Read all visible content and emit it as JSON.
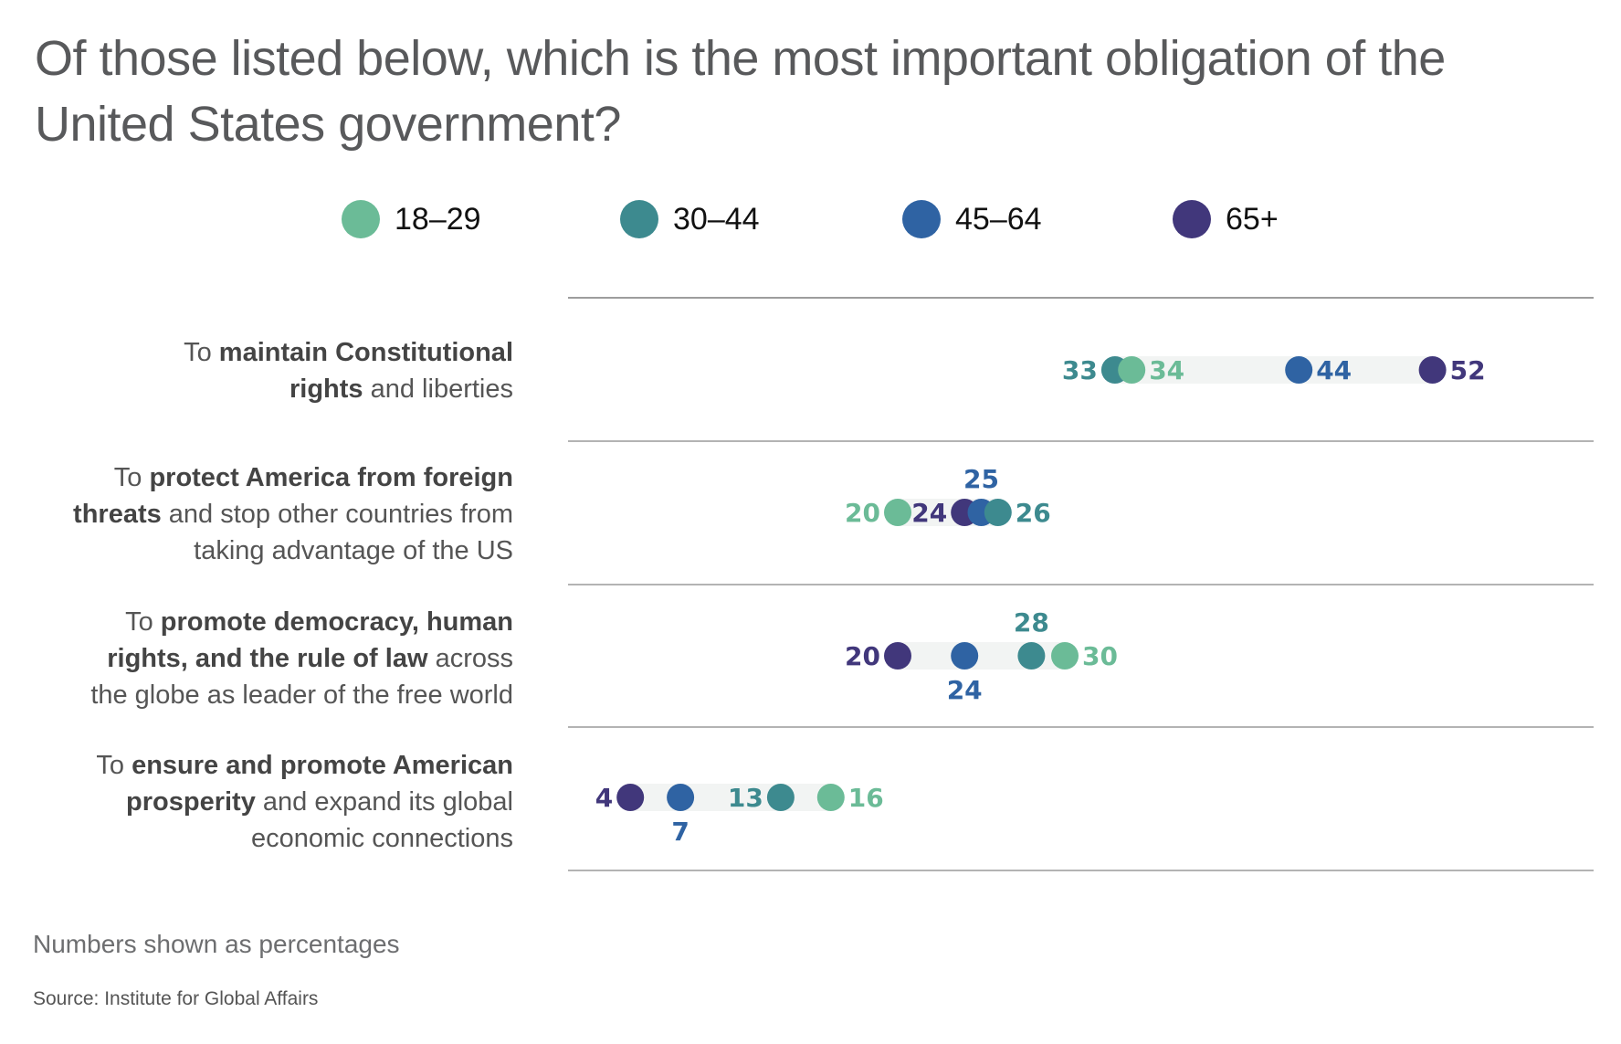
{
  "title": {
    "line1": "Of those listed below, which is the most important obligation of the",
    "line2": "United States government?"
  },
  "legend": [
    {
      "label": "18–29",
      "color": "#6bbb97"
    },
    {
      "label": "30–44",
      "color": "#3d8a8f"
    },
    {
      "label": "45–64",
      "color": "#2f63a3"
    },
    {
      "label": "65+",
      "color": "#41377b"
    }
  ],
  "rows": [
    {
      "label_parts": [
        {
          "text": "To ",
          "bold": false
        },
        {
          "text": "maintain Constitutional rights",
          "bold": true
        },
        {
          "text": " and liberties",
          "bold": false
        }
      ],
      "label_lines": [
        [
          {
            "text": "To ",
            "bold": false
          },
          {
            "text": "maintain Constitutional",
            "bold": true
          }
        ],
        [
          {
            "text": "rights",
            "bold": true
          },
          {
            "text": " and liberties",
            "bold": false
          }
        ]
      ]
    },
    {
      "label_lines": [
        [
          {
            "text": "To ",
            "bold": false
          },
          {
            "text": "protect America from foreign",
            "bold": true
          }
        ],
        [
          {
            "text": "threats",
            "bold": true
          },
          {
            "text": " and stop other countries from",
            "bold": false
          }
        ],
        [
          {
            "text": "taking advantage of the US",
            "bold": false
          }
        ]
      ]
    },
    {
      "label_lines": [
        [
          {
            "text": "To ",
            "bold": false
          },
          {
            "text": "promote democracy, human",
            "bold": true
          }
        ],
        [
          {
            "text": "rights, and the rule of law",
            "bold": true
          },
          {
            "text": " across",
            "bold": false
          }
        ],
        [
          {
            "text": "the globe as leader of the free world",
            "bold": false
          }
        ]
      ]
    },
    {
      "label_lines": [
        [
          {
            "text": "To ",
            "bold": false
          },
          {
            "text": "ensure and promote American",
            "bold": true
          }
        ],
        [
          {
            "text": "prosperity",
            "bold": true
          },
          {
            "text": " and expand its global",
            "bold": false
          }
        ],
        [
          {
            "text": "economic connections",
            "bold": false
          }
        ]
      ]
    }
  ],
  "footnote": "Numbers shown as percentages",
  "source": "Source: Institute for Global Affairs",
  "chart_data": {
    "type": "dot-plot",
    "title": "Of those listed below, which is the most important obligation of the United States government?",
    "xlabel": "",
    "ylabel": "",
    "unit": "percent",
    "xlim": [
      0,
      60
    ],
    "grid": false,
    "legend_position": "top",
    "categories": [
      "To maintain Constitutional rights and liberties",
      "To protect America from foreign threats and stop other countries from taking advantage of the US",
      "To promote democracy, human rights, and the rule of law across the globe as leader of the free world",
      "To ensure and promote American prosperity and expand its global economic connections"
    ],
    "series": [
      {
        "name": "18–29",
        "color": "#6bbb97",
        "values": [
          34,
          20,
          30,
          16
        ],
        "label_pos": [
          "right",
          "left",
          "right",
          "right"
        ]
      },
      {
        "name": "30–44",
        "color": "#3d8a8f",
        "values": [
          33,
          26,
          28,
          13
        ],
        "label_pos": [
          "left",
          "right",
          "above",
          "left"
        ]
      },
      {
        "name": "45–64",
        "color": "#2f63a3",
        "values": [
          44,
          25,
          24,
          7
        ],
        "label_pos": [
          "right",
          "above",
          "below",
          "below"
        ]
      },
      {
        "name": "65+",
        "color": "#41377b",
        "values": [
          52,
          24,
          20,
          4
        ],
        "label_pos": [
          "right",
          "left",
          "left",
          "left"
        ]
      }
    ],
    "draw_order": [
      [
        1,
        0,
        2,
        3
      ],
      [
        0,
        3,
        2,
        1
      ],
      [
        3,
        2,
        1,
        0
      ],
      [
        3,
        2,
        1,
        0
      ]
    ]
  }
}
